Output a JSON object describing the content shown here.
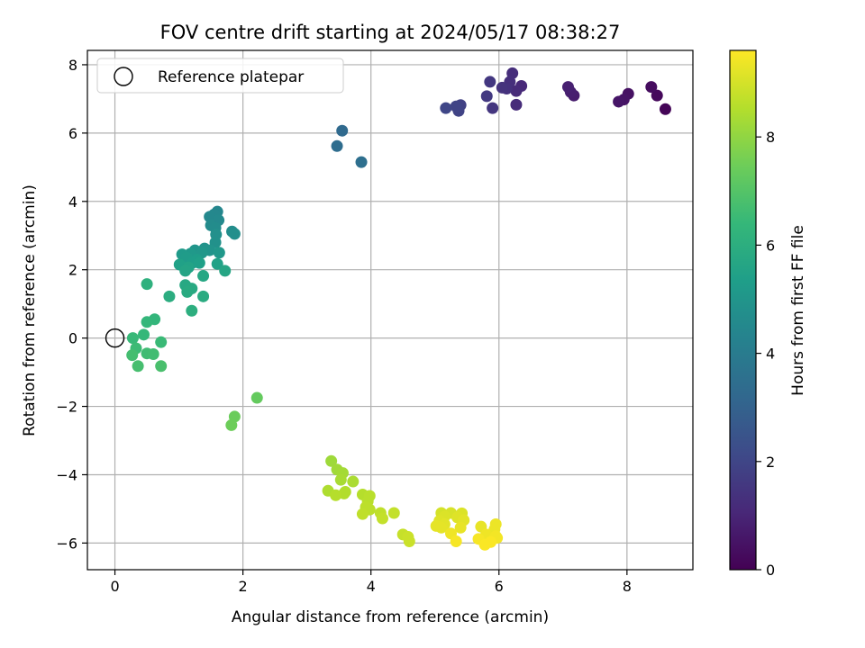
{
  "chart_data": {
    "type": "scatter",
    "title": "FOV centre drift starting at 2024/05/17 08:38:27",
    "xlabel": "Angular distance from reference (arcmin)",
    "ylabel": "Rotation from reference (arcmin)",
    "xlim": [
      -0.43,
      9.03
    ],
    "ylim": [
      -6.78,
      8.42
    ],
    "xticks": [
      0,
      2,
      4,
      6,
      8
    ],
    "yticks": [
      -6,
      -4,
      -2,
      0,
      2,
      4,
      6,
      8
    ],
    "grid": true,
    "legend": {
      "placement": "upper-left",
      "entries": [
        "Reference platepar"
      ]
    },
    "reference_point": {
      "x": 0,
      "y": 0
    },
    "colorbar": {
      "label": "Hours from first FF file",
      "colormap": "viridis",
      "range": [
        0,
        9.6
      ],
      "ticks": [
        0,
        2,
        4,
        6,
        8
      ]
    },
    "points": [
      {
        "x": 8.6,
        "y": 6.7,
        "c": 0.1
      },
      {
        "x": 8.47,
        "y": 7.1,
        "c": 0.2
      },
      {
        "x": 8.38,
        "y": 7.35,
        "c": 0.3
      },
      {
        "x": 8.02,
        "y": 7.15,
        "c": 0.45
      },
      {
        "x": 7.95,
        "y": 6.98,
        "c": 0.5
      },
      {
        "x": 7.87,
        "y": 6.92,
        "c": 0.55
      },
      {
        "x": 7.17,
        "y": 7.1,
        "c": 0.75
      },
      {
        "x": 7.12,
        "y": 7.2,
        "c": 0.8
      },
      {
        "x": 7.08,
        "y": 7.35,
        "c": 0.85
      },
      {
        "x": 6.35,
        "y": 7.38,
        "c": 1.1
      },
      {
        "x": 6.27,
        "y": 7.23,
        "c": 1.15
      },
      {
        "x": 6.27,
        "y": 6.83,
        "c": 1.2
      },
      {
        "x": 6.21,
        "y": 7.75,
        "c": 1.25
      },
      {
        "x": 6.17,
        "y": 7.5,
        "c": 1.3
      },
      {
        "x": 6.12,
        "y": 7.3,
        "c": 1.35
      },
      {
        "x": 6.05,
        "y": 7.33,
        "c": 1.4
      },
      {
        "x": 5.9,
        "y": 6.73,
        "c": 1.5
      },
      {
        "x": 5.86,
        "y": 7.5,
        "c": 1.55
      },
      {
        "x": 5.81,
        "y": 7.08,
        "c": 1.6
      },
      {
        "x": 5.4,
        "y": 6.82,
        "c": 1.85
      },
      {
        "x": 5.37,
        "y": 6.65,
        "c": 1.9
      },
      {
        "x": 5.33,
        "y": 6.78,
        "c": 1.95
      },
      {
        "x": 5.17,
        "y": 6.73,
        "c": 2.0
      },
      {
        "x": 3.55,
        "y": 6.07,
        "c": 3.3
      },
      {
        "x": 3.47,
        "y": 5.62,
        "c": 3.4
      },
      {
        "x": 3.85,
        "y": 5.15,
        "c": 3.5
      },
      {
        "x": 1.6,
        "y": 3.7,
        "c": 4.4
      },
      {
        "x": 1.55,
        "y": 3.62,
        "c": 4.45
      },
      {
        "x": 1.48,
        "y": 3.55,
        "c": 4.5
      },
      {
        "x": 1.62,
        "y": 3.45,
        "c": 4.55
      },
      {
        "x": 1.5,
        "y": 3.3,
        "c": 4.6
      },
      {
        "x": 1.57,
        "y": 3.22,
        "c": 4.65
      },
      {
        "x": 1.83,
        "y": 3.12,
        "c": 4.7
      },
      {
        "x": 1.87,
        "y": 3.05,
        "c": 4.75
      },
      {
        "x": 1.58,
        "y": 3.03,
        "c": 4.8
      },
      {
        "x": 1.57,
        "y": 2.8,
        "c": 4.85
      },
      {
        "x": 1.4,
        "y": 2.62,
        "c": 4.9
      },
      {
        "x": 1.48,
        "y": 2.57,
        "c": 4.95
      },
      {
        "x": 1.25,
        "y": 2.57,
        "c": 5.0
      },
      {
        "x": 1.36,
        "y": 2.5,
        "c": 5.05
      },
      {
        "x": 1.63,
        "y": 2.5,
        "c": 5.1
      },
      {
        "x": 1.18,
        "y": 2.47,
        "c": 5.15
      },
      {
        "x": 1.05,
        "y": 2.45,
        "c": 5.2
      },
      {
        "x": 1.12,
        "y": 2.35,
        "c": 5.25
      },
      {
        "x": 1.28,
        "y": 2.3,
        "c": 5.3
      },
      {
        "x": 1.21,
        "y": 2.2,
        "c": 5.35
      },
      {
        "x": 1.32,
        "y": 2.2,
        "c": 5.4
      },
      {
        "x": 1.01,
        "y": 2.15,
        "c": 5.45
      },
      {
        "x": 1.6,
        "y": 2.17,
        "c": 5.5
      },
      {
        "x": 1.15,
        "y": 2.07,
        "c": 5.55
      },
      {
        "x": 1.1,
        "y": 1.97,
        "c": 5.6
      },
      {
        "x": 1.72,
        "y": 1.97,
        "c": 5.65
      },
      {
        "x": 1.38,
        "y": 1.82,
        "c": 5.7
      },
      {
        "x": 1.1,
        "y": 1.55,
        "c": 5.75
      },
      {
        "x": 1.2,
        "y": 1.45,
        "c": 5.8
      },
      {
        "x": 1.13,
        "y": 1.35,
        "c": 5.85
      },
      {
        "x": 1.38,
        "y": 1.22,
        "c": 5.9
      },
      {
        "x": 0.85,
        "y": 1.22,
        "c": 5.95
      },
      {
        "x": 1.2,
        "y": 0.8,
        "c": 6.0
      },
      {
        "x": 0.5,
        "y": 1.58,
        "c": 6.1
      },
      {
        "x": 0.62,
        "y": 0.55,
        "c": 6.3
      },
      {
        "x": 0.5,
        "y": 0.47,
        "c": 6.35
      },
      {
        "x": 0.45,
        "y": 0.1,
        "c": 6.4
      },
      {
        "x": 0.28,
        "y": 0.0,
        "c": 6.45
      },
      {
        "x": 0.72,
        "y": -0.12,
        "c": 6.5
      },
      {
        "x": 0.33,
        "y": -0.3,
        "c": 6.55
      },
      {
        "x": 0.5,
        "y": -0.45,
        "c": 6.6
      },
      {
        "x": 0.6,
        "y": -0.47,
        "c": 6.65
      },
      {
        "x": 0.27,
        "y": -0.5,
        "c": 6.7
      },
      {
        "x": 0.36,
        "y": -0.82,
        "c": 6.75
      },
      {
        "x": 0.72,
        "y": -0.82,
        "c": 6.8
      },
      {
        "x": 2.22,
        "y": -1.75,
        "c": 7.3
      },
      {
        "x": 1.87,
        "y": -2.3,
        "c": 7.4
      },
      {
        "x": 1.82,
        "y": -2.55,
        "c": 7.45
      },
      {
        "x": 3.38,
        "y": -3.6,
        "c": 8.2
      },
      {
        "x": 3.47,
        "y": -3.85,
        "c": 8.25
      },
      {
        "x": 3.56,
        "y": -3.95,
        "c": 8.3
      },
      {
        "x": 3.53,
        "y": -4.15,
        "c": 8.35
      },
      {
        "x": 3.72,
        "y": -4.2,
        "c": 8.4
      },
      {
        "x": 3.33,
        "y": -4.47,
        "c": 8.45
      },
      {
        "x": 3.6,
        "y": -4.5,
        "c": 8.5
      },
      {
        "x": 3.58,
        "y": -4.55,
        "c": 8.5
      },
      {
        "x": 3.45,
        "y": -4.6,
        "c": 8.55
      },
      {
        "x": 3.87,
        "y": -4.58,
        "c": 8.55
      },
      {
        "x": 3.98,
        "y": -4.62,
        "c": 8.6
      },
      {
        "x": 3.95,
        "y": -4.78,
        "c": 8.6
      },
      {
        "x": 3.92,
        "y": -4.95,
        "c": 8.65
      },
      {
        "x": 3.98,
        "y": -5.02,
        "c": 8.65
      },
      {
        "x": 3.87,
        "y": -5.15,
        "c": 8.7
      },
      {
        "x": 4.15,
        "y": -5.12,
        "c": 8.7
      },
      {
        "x": 4.36,
        "y": -5.12,
        "c": 8.75
      },
      {
        "x": 4.18,
        "y": -5.28,
        "c": 8.75
      },
      {
        "x": 4.5,
        "y": -5.75,
        "c": 8.8
      },
      {
        "x": 4.58,
        "y": -5.82,
        "c": 8.85
      },
      {
        "x": 4.6,
        "y": -5.95,
        "c": 8.85
      },
      {
        "x": 5.1,
        "y": -5.12,
        "c": 9.0
      },
      {
        "x": 5.25,
        "y": -5.12,
        "c": 9.05
      },
      {
        "x": 5.42,
        "y": -5.13,
        "c": 9.1
      },
      {
        "x": 5.15,
        "y": -5.22,
        "c": 9.1
      },
      {
        "x": 5.35,
        "y": -5.25,
        "c": 9.15
      },
      {
        "x": 5.07,
        "y": -5.35,
        "c": 9.15
      },
      {
        "x": 5.45,
        "y": -5.33,
        "c": 9.2
      },
      {
        "x": 5.15,
        "y": -5.45,
        "c": 9.2
      },
      {
        "x": 5.02,
        "y": -5.5,
        "c": 9.25
      },
      {
        "x": 5.1,
        "y": -5.55,
        "c": 9.25
      },
      {
        "x": 5.4,
        "y": -5.55,
        "c": 9.3
      },
      {
        "x": 5.72,
        "y": -5.52,
        "c": 9.3
      },
      {
        "x": 5.95,
        "y": -5.45,
        "c": 9.35
      },
      {
        "x": 5.93,
        "y": -5.6,
        "c": 9.35
      },
      {
        "x": 5.25,
        "y": -5.72,
        "c": 9.4
      },
      {
        "x": 5.8,
        "y": -5.75,
        "c": 9.4
      },
      {
        "x": 5.95,
        "y": -5.8,
        "c": 9.45
      },
      {
        "x": 5.97,
        "y": -5.85,
        "c": 9.45
      },
      {
        "x": 5.68,
        "y": -5.88,
        "c": 9.5
      },
      {
        "x": 5.33,
        "y": -5.95,
        "c": 9.5
      },
      {
        "x": 5.87,
        "y": -5.97,
        "c": 9.55
      },
      {
        "x": 5.78,
        "y": -6.05,
        "c": 9.55
      }
    ]
  }
}
